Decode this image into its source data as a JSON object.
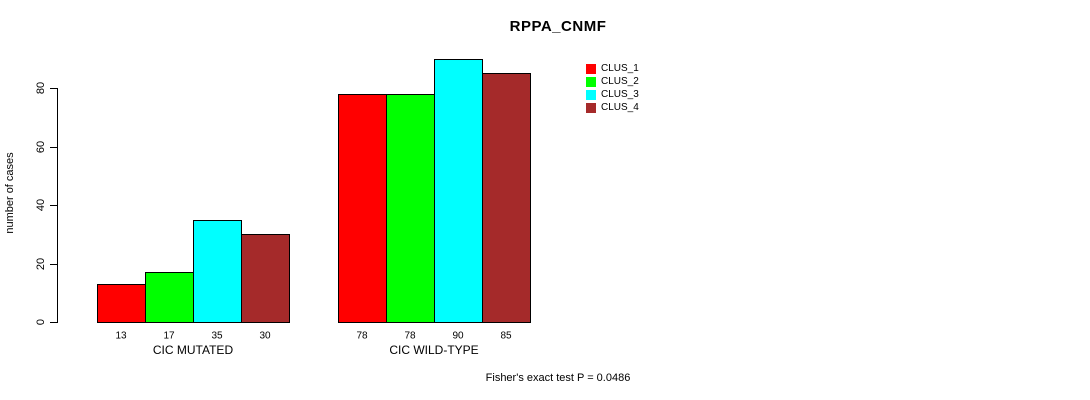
{
  "chart_data": {
    "type": "bar",
    "title": "RPPA_CNMF",
    "ylabel": "number of cases",
    "xlabel": "",
    "categories": [
      "CIC MUTATED",
      "CIC WILD-TYPE"
    ],
    "series": [
      {
        "name": "CLUS_1",
        "color": "#FF0000",
        "values": [
          13,
          78
        ]
      },
      {
        "name": "CLUS_2",
        "color": "#00FF00",
        "values": [
          17,
          78
        ]
      },
      {
        "name": "CLUS_3",
        "color": "#00FFFF",
        "values": [
          35,
          90
        ]
      },
      {
        "name": "CLUS_4",
        "color": "#A52A2A",
        "values": [
          30,
          85
        ]
      }
    ],
    "bar_value_labels": [
      [
        13,
        17,
        35,
        30
      ],
      [
        78,
        78,
        90,
        85
      ]
    ],
    "yticks": [
      0,
      20,
      40,
      60,
      80
    ],
    "ylim": [
      0,
      90
    ],
    "grid": false,
    "legend_position": "top-right",
    "annotation": "Fisher's exact test P = 0.0486"
  }
}
